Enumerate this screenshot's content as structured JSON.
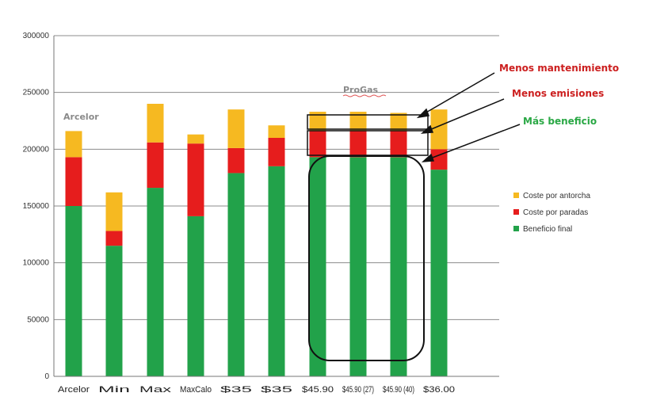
{
  "chart_data": {
    "type": "bar",
    "stacked": true,
    "ylim": [
      0,
      300000
    ],
    "yticks": [
      "0",
      "50000",
      "100000",
      "150000",
      "200000",
      "250000",
      "300000"
    ],
    "grid": true,
    "legend_position": "right",
    "categories": [
      "Arcelor",
      "Min",
      "Max",
      "MaxCalo",
      "$35",
      "$35",
      "$45.90",
      "$45.90",
      "$45.90",
      "$36.00"
    ],
    "category_labels_display": [
      "Arcelor",
      "Min",
      "Max",
      "MaxCalo",
      "$35",
      "$35",
      "$45.90",
      "$45.90 (27)",
      "$45.90 (40)",
      "$36.00"
    ],
    "series": [
      {
        "name": "Beneficio final",
        "color": "#22a24a",
        "values": [
          150000,
          115000,
          166000,
          141000,
          179000,
          185000,
          193000,
          193000,
          193000,
          182000
        ]
      },
      {
        "name": "Coste por paradas",
        "color": "#e61d1d",
        "values": [
          43000,
          13000,
          40000,
          64000,
          22000,
          25000,
          23000,
          23000,
          23000,
          18000
        ]
      },
      {
        "name": "Coste por antorcha",
        "color": "#f6b921",
        "values": [
          23000,
          34000,
          34000,
          8000,
          34000,
          11000,
          17000,
          17000,
          16000,
          35000
        ]
      }
    ],
    "group_labels": [
      {
        "text": "Arcelor"
      },
      {
        "text": "ProGas"
      }
    ],
    "annotations": [
      {
        "text": "Menos mantenimiento",
        "color": "#cc1f1f"
      },
      {
        "text": "Menos emisiones",
        "color": "#cc1f1f"
      },
      {
        "text": "Más beneficio",
        "color": "#2aa845"
      }
    ]
  }
}
